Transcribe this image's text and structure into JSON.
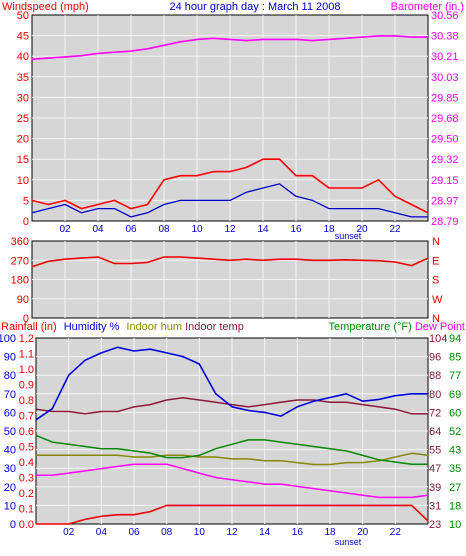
{
  "colors": {
    "background": "#ffffff",
    "plot_bg": "#d6d6d6",
    "wind_speed": "#ff0000",
    "wind_avg": "#0000cc",
    "barometer": "#ff00ff",
    "direction": "#ee0000",
    "rainfall": "#ee0000",
    "humidity": "#0000dd",
    "indoor_hum": "#888800",
    "indoor_temp": "#8b1a3a",
    "temperature": "#008800",
    "dew_point": "#ff00ff",
    "title": "#0000cc"
  },
  "panel1": {
    "left_label": "Windspeed (mph)",
    "title": "24 hour graph day : March 11 2008",
    "right_label": "Barometer (in.)"
  },
  "panel3": {
    "label_rain": "Rainfall (in)",
    "label_humidity": "Humidity %",
    "label_indoor_hum": "Indoor hum",
    "label_indoor_temp": "Indoor temp",
    "label_temperature": "Temperature (°F)",
    "label_dew_point": "Dew Point"
  },
  "x_ticks": [
    "02",
    "04",
    "06",
    "08",
    "10",
    "12",
    "14",
    "16",
    "18",
    "20",
    "22"
  ],
  "sunset_label": "sunset",
  "chart_data": [
    {
      "type": "line",
      "title": "24 hour graph day : March 11 2008",
      "x": [
        0,
        1,
        2,
        3,
        4,
        5,
        6,
        7,
        8,
        9,
        10,
        11,
        12,
        13,
        14,
        15,
        16,
        17,
        18,
        19,
        20,
        21,
        22,
        23,
        24
      ],
      "xlim": [
        0,
        24
      ],
      "ylabel": "Windspeed (mph)",
      "ylim": [
        0,
        50
      ],
      "y_ticks": [
        0,
        5,
        10,
        15,
        20,
        25,
        30,
        35,
        40,
        45,
        50
      ],
      "y2label": "Barometer (in.)",
      "y2lim": [
        28.79,
        30.56
      ],
      "y2_ticks": [
        "28.79",
        "28.97",
        "29.15",
        "29.32",
        "29.50",
        "29.68",
        "29.85",
        "30.03",
        "30.21",
        "30.38",
        "30.56"
      ],
      "series": [
        {
          "axis": "left",
          "values": [
            5,
            4,
            5,
            3,
            4,
            5,
            3,
            4,
            10,
            11,
            11,
            12,
            12,
            13,
            15,
            15,
            11,
            11,
            8,
            8,
            8,
            10,
            6,
            4,
            2
          ]
        },
        {
          "axis": "left",
          "values": [
            2,
            3,
            4,
            2,
            3,
            3,
            1,
            2,
            4,
            5,
            5,
            5,
            5,
            7,
            8,
            9,
            6,
            5,
            3,
            3,
            3,
            3,
            2,
            1,
            1
          ]
        },
        {
          "axis": "right",
          "values": [
            30.18,
            30.19,
            30.2,
            30.21,
            30.23,
            30.24,
            30.25,
            30.27,
            30.3,
            30.33,
            30.35,
            30.36,
            30.35,
            30.34,
            30.35,
            30.35,
            30.35,
            30.34,
            30.35,
            30.36,
            30.37,
            30.38,
            30.38,
            30.37,
            30.37
          ]
        }
      ]
    },
    {
      "type": "line",
      "x": [
        0,
        1,
        2,
        3,
        4,
        5,
        6,
        7,
        8,
        9,
        10,
        11,
        12,
        13,
        14,
        15,
        16,
        17,
        18,
        19,
        20,
        21,
        22,
        23,
        24
      ],
      "xlim": [
        0,
        24
      ],
      "ylim": [
        0,
        360
      ],
      "y_ticks": [
        "0",
        "90",
        "180",
        "270",
        "360"
      ],
      "y2_ticks": [
        "N",
        "W",
        "S",
        "E",
        "N"
      ],
      "series": [
        {
          "values": [
            240,
            265,
            275,
            280,
            285,
            255,
            255,
            260,
            285,
            285,
            280,
            275,
            270,
            275,
            270,
            275,
            275,
            270,
            270,
            272,
            270,
            268,
            262,
            245,
            280
          ]
        }
      ]
    },
    {
      "type": "line",
      "x": [
        0,
        1,
        2,
        3,
        4,
        5,
        6,
        7,
        8,
        9,
        10,
        11,
        12,
        13,
        14,
        15,
        16,
        17,
        18,
        19,
        20,
        21,
        22,
        23,
        24
      ],
      "xlim": [
        0,
        24
      ],
      "left_ticks_inner": [
        "0.0",
        "0.1",
        "0.2",
        "0.3",
        "0.4",
        "0.5",
        "0.6",
        "0.7",
        "0.8",
        "0.9",
        "1.0",
        "1.1",
        "1.2"
      ],
      "left_ticks_outer": [
        "0",
        "10",
        "20",
        "30",
        "40",
        "50",
        "60",
        "70",
        "80",
        "90",
        "100"
      ],
      "right_ticks_inner": [
        "23",
        "31",
        "39",
        "47",
        "55",
        "64",
        "72",
        "80",
        "88",
        "96",
        "104"
      ],
      "right_ticks_outer": [
        "10",
        "18",
        "27",
        "35",
        "43",
        "52",
        "60",
        "69",
        "77",
        "85",
        "94"
      ],
      "series": [
        {
          "axis": "rain",
          "ylim": [
            0,
            1.2
          ],
          "values": [
            0,
            0,
            0,
            0.03,
            0.05,
            0.06,
            0.06,
            0.08,
            0.12,
            0.12,
            0.12,
            0.12,
            0.12,
            0.12,
            0.12,
            0.12,
            0.12,
            0.12,
            0.12,
            0.12,
            0.12,
            0.12,
            0.12,
            0.12,
            0.02
          ]
        },
        {
          "axis": "percent",
          "ylim": [
            0,
            100
          ],
          "values": [
            56,
            62,
            80,
            88,
            92,
            95,
            93,
            94,
            92,
            90,
            86,
            70,
            63,
            61,
            60,
            58,
            63,
            66,
            68,
            70,
            66,
            67,
            69,
            70,
            70
          ]
        },
        {
          "axis": "percent",
          "ylim": [
            0,
            100
          ],
          "values": [
            37,
            37,
            37,
            37,
            37,
            37,
            36,
            36,
            37,
            37,
            36,
            36,
            35,
            35,
            34,
            34,
            33,
            32,
            32,
            33,
            33,
            34,
            36,
            38,
            37
          ]
        },
        {
          "axis": "indoor",
          "ylim": [
            23,
            104
          ],
          "values": [
            73,
            72,
            72,
            71,
            72,
            72,
            74,
            75,
            77,
            78,
            77,
            76,
            75,
            74,
            75,
            76,
            77,
            77,
            76,
            76,
            75,
            74,
            73,
            71,
            71
          ]
        },
        {
          "axis": "outdoor",
          "ylim": [
            10,
            94
          ],
          "values": [
            50,
            47,
            46,
            45,
            44,
            44,
            43,
            42,
            40,
            40,
            41,
            44,
            46,
            48,
            48,
            47,
            46,
            45,
            44,
            43,
            41,
            39,
            38,
            37,
            37
          ]
        },
        {
          "axis": "outdoor",
          "ylim": [
            10,
            94
          ],
          "values": [
            32,
            32,
            33,
            34,
            35,
            36,
            37,
            37,
            37,
            35,
            33,
            31,
            30,
            29,
            28,
            28,
            27,
            26,
            25,
            24,
            23,
            22,
            22,
            22,
            23
          ]
        }
      ]
    }
  ]
}
